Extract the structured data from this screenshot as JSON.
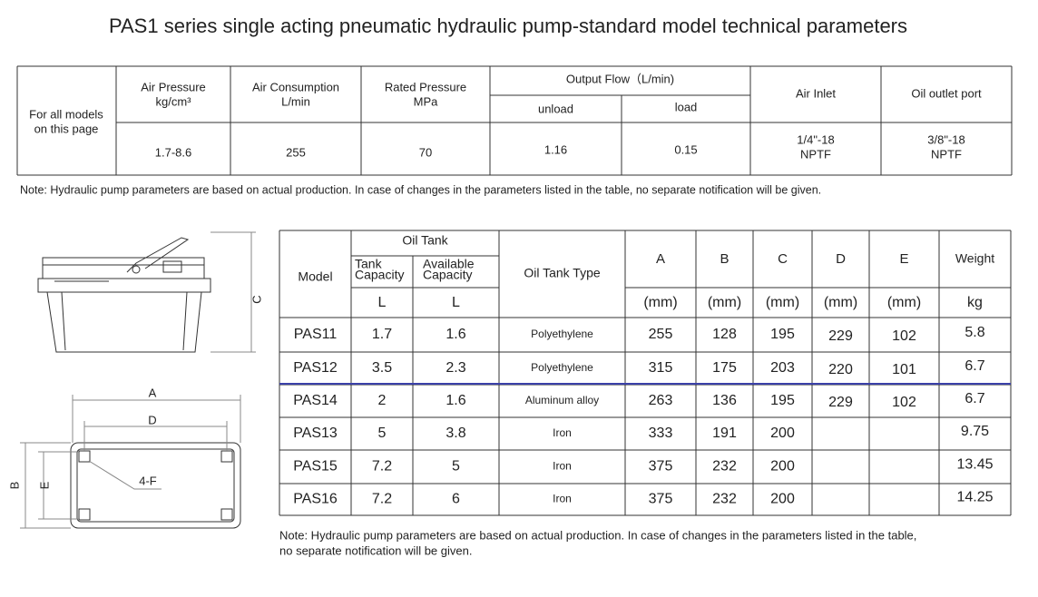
{
  "title": "PAS1 series single acting pneumatic hydraulic pump-standard model technical parameters",
  "spec_table": {
    "row_label": [
      "For all models",
      "on this page"
    ],
    "columns": [
      {
        "header": "Air Pressure",
        "unit": "kg/cm³",
        "value": [
          "1.7-8.6"
        ]
      },
      {
        "header": "Air Consumption",
        "unit": "L/min",
        "value": [
          "255"
        ]
      },
      {
        "header": "Rated Pressure",
        "unit": "MPa",
        "value": [
          "70"
        ]
      }
    ],
    "output_flow": {
      "header": "Output Flow（L/min)",
      "unload": "unload",
      "load": "load",
      "unload_value": "1.16",
      "load_value": "0.15"
    },
    "ports": [
      {
        "header": "Air Inlet",
        "value": [
          "1/4\"-18",
          "NPTF"
        ]
      },
      {
        "header": "Oil outlet port",
        "value": [
          "3/8\"-18",
          "NPTF"
        ]
      }
    ]
  },
  "note_1": "Note: Hydraulic pump parameters are based on actual production. In case of changes in the parameters listed in the table, no separate notification will be given.",
  "diagram_labels": {
    "A": "A",
    "D": "D",
    "C": "C",
    "B": "B",
    "E": "E",
    "F": "4-F"
  },
  "model_table": {
    "header": {
      "model": "Model",
      "oil_tank": "Oil Tank",
      "tank_capacity": [
        "Tank",
        "Capacity"
      ],
      "available_capacity": [
        "Available",
        "Capacity"
      ],
      "oil_tank_type": "Oil Tank Type",
      "dims": [
        "A",
        "B",
        "C",
        "D",
        "E"
      ],
      "weight": "Weight"
    },
    "units": [
      "L",
      "L",
      "(mm)",
      "(mm)",
      "(mm)",
      "(mm)",
      "(mm)",
      "kg"
    ],
    "rows": [
      [
        "PAS11",
        "1.7",
        "1.6",
        "Polyethylene",
        "255",
        "128",
        "195",
        "229",
        "102",
        "5.8"
      ],
      [
        "PAS12",
        "3.5",
        "2.3",
        "Polyethylene",
        "315",
        "175",
        "203",
        "220",
        "101",
        "6.7"
      ],
      [
        "PAS14",
        "2",
        "1.6",
        "Aluminum alloy",
        "263",
        "136",
        "195",
        "229",
        "102",
        "6.7"
      ],
      [
        "PAS13",
        "5",
        "3.8",
        "Iron",
        "333",
        "191",
        "200",
        null,
        null,
        "9.75"
      ],
      [
        "PAS15",
        "7.2",
        "5",
        "Iron",
        "375",
        "232",
        "200",
        null,
        null,
        "13.45"
      ],
      [
        "PAS16",
        "7.2",
        "6",
        "Iron",
        "375",
        "232",
        "200",
        null,
        null,
        "14.25"
      ]
    ]
  },
  "note_2": [
    "Note: Hydraulic pump parameters are based on actual production. In case of changes in the parameters listed in the table,",
    "no separate notification will be given."
  ]
}
